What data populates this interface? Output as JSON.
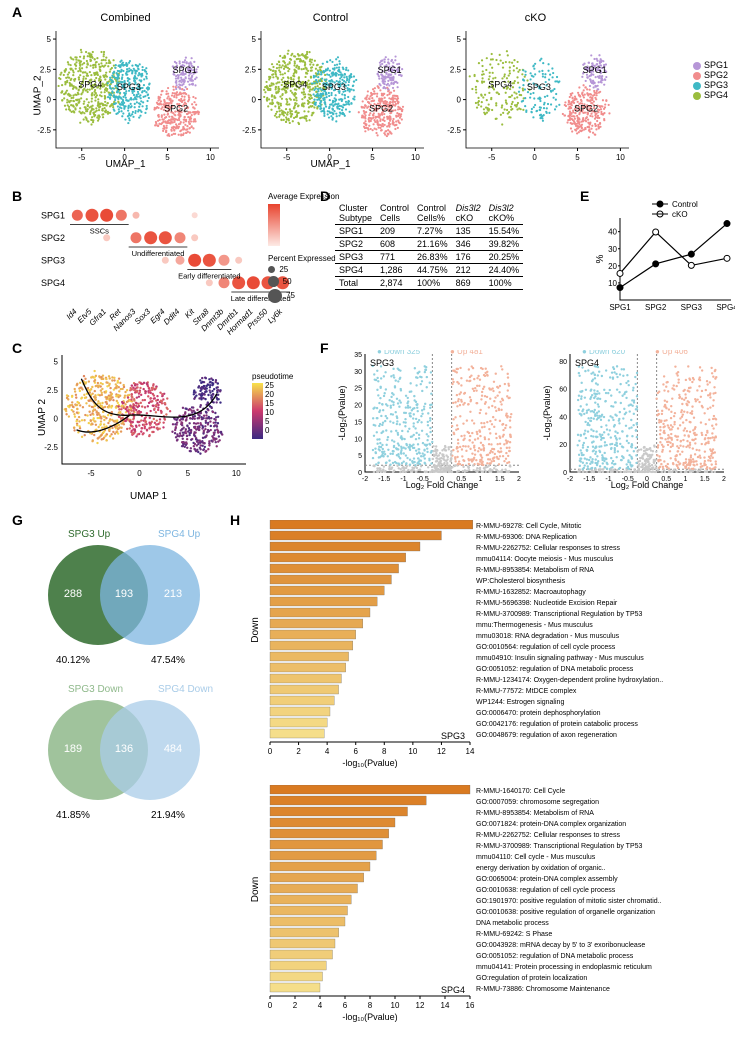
{
  "colors": {
    "SPG1": "#b696d7",
    "SPG2": "#f18d8d",
    "SPG3": "#3fb9c5",
    "SPG4": "#9bbd3e",
    "dotplot_max": "#e8432e",
    "dotplot_min": "#fdeae5",
    "pseudo_low": "#3b2a82",
    "pseudo_mid": "#cc3a6e",
    "pseudo_high": "#f8e24a",
    "volcano_down": "#8fd0de",
    "volcano_up": "#f3b29b",
    "volcano_ns": "#c9c9c9",
    "venn_up_a": "#2f6b2d",
    "venn_up_b": "#7eb6e0",
    "venn_down_a": "#8fb98b",
    "venn_down_b": "#a9cce8",
    "bar_dark": "#d97a21",
    "bar_light": "#f5de8a"
  },
  "panelA": {
    "label": "A",
    "titles": [
      "Combined",
      "Control",
      "cKO"
    ],
    "xaxis": "UMAP_1",
    "yaxis": "UMAP_2",
    "xlim": [
      -8,
      11
    ],
    "ylim": [
      -4,
      5.5
    ],
    "xticks": [
      -5,
      0,
      5,
      10
    ],
    "yticks": [
      -2.5,
      0,
      2.5,
      5.0
    ],
    "cluster_labels": [
      "SPG1",
      "SPG2",
      "SPG3",
      "SPG4"
    ],
    "legend": [
      {
        "k": "SPG1"
      },
      {
        "k": "SPG2"
      },
      {
        "k": "SPG3"
      },
      {
        "k": "SPG4"
      }
    ]
  },
  "panelB": {
    "label": "B",
    "rows": [
      "SPG1",
      "SPG2",
      "SPG3",
      "SPG4"
    ],
    "row_sub": [
      "SSCs",
      "Undifferentiated",
      "Early differentiated",
      "Late differentiated"
    ],
    "genes": [
      "Id4",
      "Etv5",
      "Gfra1",
      "Ret",
      "Nanos3",
      "Sox3",
      "Egr4",
      "Ddit4",
      "Kit",
      "Stra8",
      "Dnmt3b",
      "Dmrtb1",
      "Hormad1",
      "Prss50",
      "Ly6k"
    ],
    "legend_expr": "Average Expression",
    "legend_pct": "Percent Expressed",
    "pct_levels": [
      25,
      50,
      75
    ],
    "dots": [
      {
        "r": 0,
        "c": 0,
        "s": 0.7,
        "e": 0.8
      },
      {
        "r": 0,
        "c": 1,
        "s": 0.9,
        "e": 0.9
      },
      {
        "r": 0,
        "c": 2,
        "s": 0.9,
        "e": 0.95
      },
      {
        "r": 0,
        "c": 3,
        "s": 0.7,
        "e": 0.7
      },
      {
        "r": 0,
        "c": 4,
        "s": 0.3,
        "e": 0.3
      },
      {
        "r": 0,
        "c": 8,
        "s": 0.2,
        "e": 0.1
      },
      {
        "r": 1,
        "c": 2,
        "s": 0.3,
        "e": 0.2
      },
      {
        "r": 1,
        "c": 4,
        "s": 0.7,
        "e": 0.7
      },
      {
        "r": 1,
        "c": 5,
        "s": 0.9,
        "e": 0.9
      },
      {
        "r": 1,
        "c": 6,
        "s": 0.9,
        "e": 0.9
      },
      {
        "r": 1,
        "c": 7,
        "s": 0.7,
        "e": 0.6
      },
      {
        "r": 1,
        "c": 8,
        "s": 0.3,
        "e": 0.2
      },
      {
        "r": 2,
        "c": 6,
        "s": 0.3,
        "e": 0.2
      },
      {
        "r": 2,
        "c": 7,
        "s": 0.5,
        "e": 0.4
      },
      {
        "r": 2,
        "c": 8,
        "s": 0.9,
        "e": 0.95
      },
      {
        "r": 2,
        "c": 9,
        "s": 0.9,
        "e": 0.9
      },
      {
        "r": 2,
        "c": 10,
        "s": 0.7,
        "e": 0.5
      },
      {
        "r": 2,
        "c": 11,
        "s": 0.3,
        "e": 0.2
      },
      {
        "r": 3,
        "c": 9,
        "s": 0.3,
        "e": 0.2
      },
      {
        "r": 3,
        "c": 10,
        "s": 0.7,
        "e": 0.6
      },
      {
        "r": 3,
        "c": 11,
        "s": 0.9,
        "e": 0.9
      },
      {
        "r": 3,
        "c": 12,
        "s": 0.9,
        "e": 0.95
      },
      {
        "r": 3,
        "c": 13,
        "s": 0.9,
        "e": 0.9
      },
      {
        "r": 3,
        "c": 14,
        "s": 0.9,
        "e": 0.9
      }
    ]
  },
  "panelC": {
    "label": "C",
    "xaxis": "UMAP 1",
    "yaxis": "UMAP 2",
    "legend": "pseudotime",
    "legend_ticks": [
      25,
      20,
      15,
      10,
      5,
      0
    ],
    "xlim": [
      -8,
      11
    ],
    "ylim": [
      -4,
      5.5
    ],
    "xticks": [
      -5,
      0,
      5,
      10
    ],
    "yticks": [
      -2.5,
      0,
      2.5,
      5.0
    ]
  },
  "panelD": {
    "label": "D",
    "headers": [
      "Cluster Subtype",
      "Control Cells",
      "Control Cells%",
      "Dis3l2 cKO",
      "Dis3l2 cKO%"
    ],
    "rows": [
      [
        "SPG1",
        "209",
        "7.27%",
        "135",
        "15.54%"
      ],
      [
        "SPG2",
        "608",
        "21.16%",
        "346",
        "39.82%"
      ],
      [
        "SPG3",
        "771",
        "26.83%",
        "176",
        "20.25%"
      ],
      [
        "SPG4",
        "1,286",
        "44.75%",
        "212",
        "24.40%"
      ],
      [
        "Total",
        "2,874",
        "100%",
        "869",
        "100%"
      ]
    ]
  },
  "panelE": {
    "label": "E",
    "yaxis": "%",
    "series": [
      "Control",
      "cKO"
    ],
    "x": [
      "SPG1",
      "SPG2",
      "SPG3",
      "SPG4"
    ],
    "control": [
      7.27,
      21.16,
      26.83,
      44.75
    ],
    "cko": [
      15.54,
      39.82,
      20.25,
      24.4
    ],
    "yticks": [
      10,
      20,
      30,
      40
    ]
  },
  "panelF": {
    "label": "F",
    "plots": [
      {
        "name": "SPG3",
        "down": "Down 325",
        "up": "Up 481"
      },
      {
        "name": "SPG4",
        "down": "Down 620",
        "up": "Up 406"
      }
    ],
    "xaxis": "Log₂ Fold Change",
    "yaxis": "-Log₂(Pvalue)",
    "xlim": [
      -2,
      2
    ],
    "xticks": [
      -2.0,
      -1.5,
      -1.0,
      -0.5,
      0,
      0.5,
      1.0,
      1.5,
      2.0
    ],
    "ylim_a": [
      0,
      35
    ],
    "yticks_a": [
      0,
      5,
      10,
      15,
      20,
      25,
      30,
      35
    ],
    "ylim_b": [
      0,
      85
    ],
    "yticks_b": [
      0,
      20,
      40,
      60,
      80
    ]
  },
  "panelG": {
    "label": "G",
    "up": {
      "a_label": "SPG3 Up",
      "b_label": "SPG4 Up",
      "a_only": 288,
      "both": 193,
      "b_only": 213,
      "a_pct": "40.12%",
      "b_pct": "47.54%"
    },
    "down": {
      "a_label": "SPG3 Down",
      "b_label": "SPG4 Down",
      "a_only": 189,
      "both": 136,
      "b_only": 484,
      "a_pct": "41.85%",
      "b_pct": "21.94%"
    }
  },
  "panelH": {
    "label": "H",
    "xaxis": "-log₁₀(Pvalue)",
    "side_label": "Down",
    "spg3": {
      "name": "SPG3",
      "xmax": 14,
      "xticks": [
        0,
        2,
        4,
        6,
        8,
        10,
        12,
        14
      ],
      "bars": [
        {
          "v": 14.2,
          "t": "R-MMU-69278: Cell Cycle, Mitotic"
        },
        {
          "v": 12.0,
          "t": "R-MMU-69306: DNA Replication"
        },
        {
          "v": 10.5,
          "t": "R-MMU-2262752: Cellular responses to stress"
        },
        {
          "v": 9.5,
          "t": "mmu04114: Oocyte meiosis - Mus musculus"
        },
        {
          "v": 9.0,
          "t": "R-MMU-8953854: Metabolism of RNA"
        },
        {
          "v": 8.5,
          "t": "WP:Cholesterol biosynthesis"
        },
        {
          "v": 8.0,
          "t": "R-MMU-1632852: Macroautophagy"
        },
        {
          "v": 7.5,
          "t": "R-MMU-5696398: Nucleotide Excision Repair"
        },
        {
          "v": 7.0,
          "t": "R-MMU-3700989: Transcriptional Regulation by TP53"
        },
        {
          "v": 6.5,
          "t": "mmu:Thermogenesis - Mus musculus"
        },
        {
          "v": 6.0,
          "t": "mmu03018: RNA degradation - Mus musculus"
        },
        {
          "v": 5.8,
          "t": "GO:0010564: regulation of cell cycle process"
        },
        {
          "v": 5.5,
          "t": "mmu04910: Insulin signaling pathway - Mus musculus"
        },
        {
          "v": 5.3,
          "t": "GO:0051052: regulation of DNA metabolic process"
        },
        {
          "v": 5.0,
          "t": "R-MMU-1234174: Oxygen-dependent proline hydroxylation.."
        },
        {
          "v": 4.8,
          "t": "R-MMU-77572: MtDCE complex"
        },
        {
          "v": 4.5,
          "t": "WP1244: Estrogen signaling"
        },
        {
          "v": 4.2,
          "t": "GO:0006470: protein dephosphorylation"
        },
        {
          "v": 4.0,
          "t": "GO:0042176: regulation of protein catabolic process"
        },
        {
          "v": 3.8,
          "t": "GO:0048679: regulation of axon regeneration"
        }
      ]
    },
    "spg4": {
      "name": "SPG4",
      "xmax": 16,
      "xticks": [
        0,
        2,
        4,
        6,
        8,
        10,
        12,
        14,
        16
      ],
      "bars": [
        {
          "v": 16.0,
          "t": "R-MMU-1640170: Cell Cycle"
        },
        {
          "v": 12.5,
          "t": "GO:0007059: chromosome segregation"
        },
        {
          "v": 11.0,
          "t": "R-MMU-8953854: Metabolism of RNA"
        },
        {
          "v": 10.0,
          "t": "GO:0071824: protein-DNA complex organization"
        },
        {
          "v": 9.5,
          "t": "R-MMU-2262752: Cellular responses to stress"
        },
        {
          "v": 9.0,
          "t": "R-MMU-3700989: Transcriptional Regulation by TP53"
        },
        {
          "v": 8.5,
          "t": "mmu04110: Cell cycle - Mus musculus"
        },
        {
          "v": 8.0,
          "t": "energy derivation by oxidation of organic.."
        },
        {
          "v": 7.5,
          "t": "GO:0065004: protein-DNA complex assembly"
        },
        {
          "v": 7.0,
          "t": "GO:0010638: regulation of cell cycle process"
        },
        {
          "v": 6.5,
          "t": "GO:1901970: positive regulation of mitotic sister chromatid.."
        },
        {
          "v": 6.2,
          "t": "GO:0010638: positive regulation of organelle organization"
        },
        {
          "v": 6.0,
          "t": "DNA metabolic process"
        },
        {
          "v": 5.5,
          "t": "R-MMU-69242: S Phase"
        },
        {
          "v": 5.2,
          "t": "GO:0043928: mRNA decay by 5' to 3' exoribonuclease"
        },
        {
          "v": 5.0,
          "t": "GO:0051052: regulation of DNA metabolic process"
        },
        {
          "v": 4.5,
          "t": "mmu04141: Protein processing in endoplasmic reticulum"
        },
        {
          "v": 4.2,
          "t": "GO:regulation of protein localization"
        },
        {
          "v": 4.0,
          "t": "R-MMU-73886: Chromosome Maintenance"
        }
      ]
    }
  }
}
